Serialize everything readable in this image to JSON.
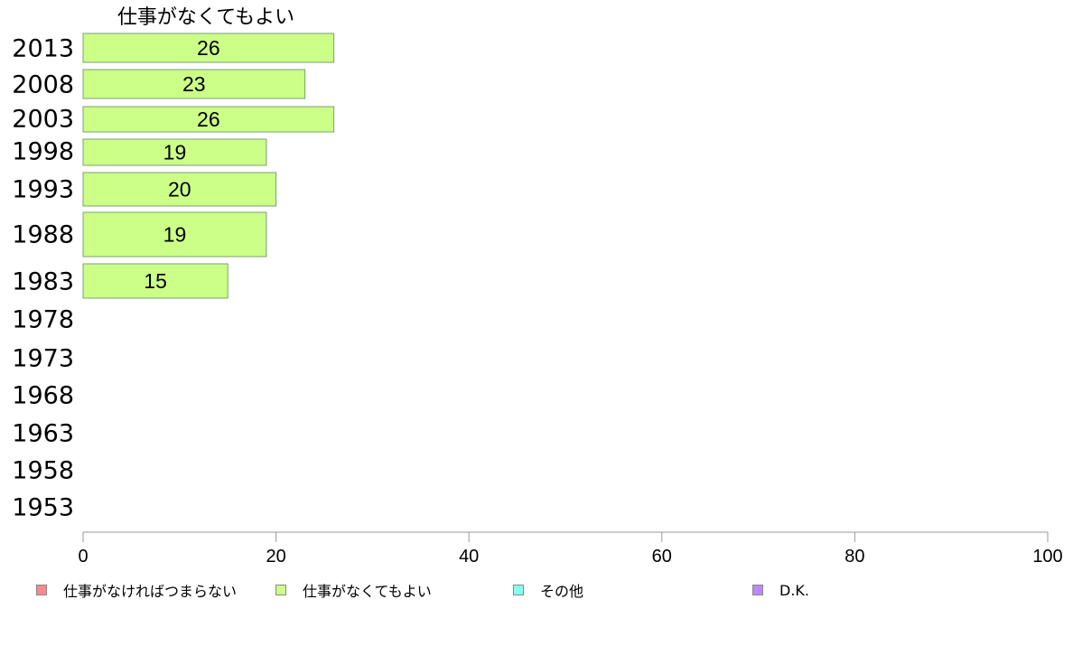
{
  "chart_data": {
    "type": "bar",
    "orientation": "horizontal",
    "title": "仕事がなくてもよい",
    "categories": [
      "2013",
      "2008",
      "2003",
      "1998",
      "1993",
      "1988",
      "1983",
      "1978",
      "1973",
      "1968",
      "1963",
      "1958",
      "1953"
    ],
    "series": [
      {
        "name": "仕事がなくてもよい",
        "color": "#ccff88",
        "values": [
          26,
          23,
          26,
          19,
          20,
          19,
          15,
          null,
          null,
          null,
          null,
          null,
          null
        ],
        "labels": [
          "26",
          "23",
          "26",
          "19",
          "20",
          "19",
          "15",
          "",
          "",
          "",
          "",
          "",
          ""
        ]
      }
    ],
    "xlim": [
      0,
      100
    ],
    "xticks": [
      "0",
      "20",
      "40",
      "60",
      "80",
      "100"
    ],
    "grid": false,
    "legend": {
      "placement": "bottom",
      "items": [
        {
          "label": "仕事がなければつまらない",
          "color": "#ff8888"
        },
        {
          "label": "仕事がなくてもよい",
          "color": "#ccff88"
        },
        {
          "label": "その他",
          "color": "#88ffee"
        },
        {
          "label": "D.K.",
          "color": "#bb88ff"
        }
      ]
    }
  }
}
